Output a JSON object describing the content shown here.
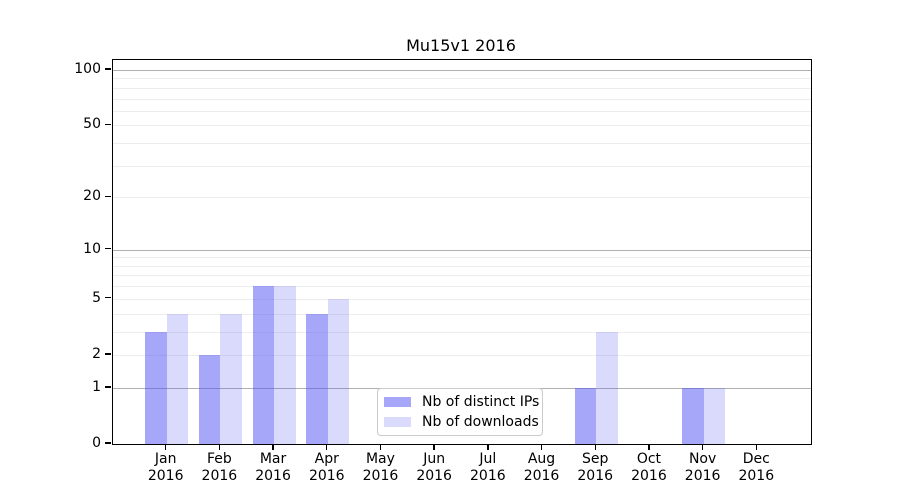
{
  "chart_data": {
    "type": "bar",
    "title": "Mu15v1 2016",
    "xlabel": "",
    "ylabel": "",
    "yscale": "log1p",
    "ylim": [
      0,
      114
    ],
    "grid": true,
    "categories": [
      "Jan 2016",
      "Feb 2016",
      "Mar 2016",
      "Apr 2016",
      "May 2016",
      "Jun 2016",
      "Jul 2016",
      "Aug 2016",
      "Sep 2016",
      "Oct 2016",
      "Nov 2016",
      "Dec 2016"
    ],
    "series": [
      {
        "name": "Nb of distinct IPs",
        "color": "rgba(80,80,245,0.50)",
        "values": [
          3,
          2,
          6,
          4,
          0,
          0,
          0,
          0,
          1,
          0,
          1,
          0
        ]
      },
      {
        "name": "Nb of downloads",
        "color": "rgba(80,80,245,0.21)",
        "values": [
          4,
          4,
          6,
          5,
          0,
          0,
          0,
          0,
          3,
          0,
          1,
          0
        ]
      }
    ],
    "ytick_values": [
      0,
      1,
      2,
      5,
      10,
      20,
      50,
      100
    ],
    "major_gridlines": [
      1,
      10,
      100
    ],
    "minor_gridlines": [
      2,
      3,
      4,
      5,
      6,
      7,
      8,
      9,
      20,
      30,
      40,
      50,
      60,
      70,
      80,
      90
    ],
    "legend_position": "lower center-left inside plot"
  },
  "colors": {
    "axis": "#000000",
    "major_grid": "#b0b0b0",
    "minor_grid": "#ededed",
    "legend_border": "#cccccc",
    "background": "#ffffff"
  }
}
